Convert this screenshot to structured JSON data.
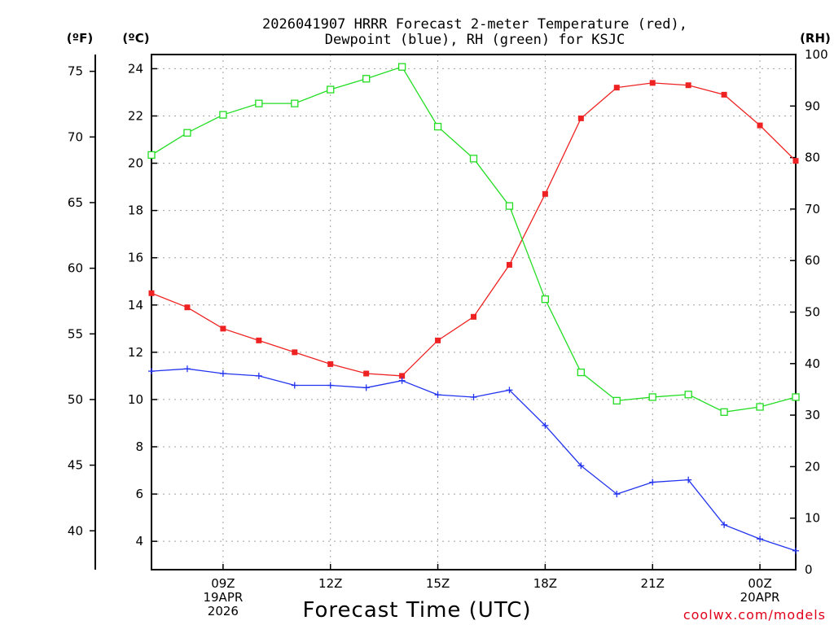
{
  "chart_data": {
    "type": "line",
    "title_line1": "2026041907 HRRR Forecast 2-meter Temperature (red),",
    "title_line2": "Dewpoint (blue), RH (green) for KSJC",
    "xlabel": "Forecast Time (UTC)",
    "credit": "coolwx.com/models",
    "units": {
      "f": "(ºF)",
      "c": "(ºC)",
      "rh": "(RH)"
    },
    "x_hours": [
      7,
      8,
      9,
      10,
      11,
      12,
      13,
      14,
      15,
      16,
      17,
      18,
      19,
      20,
      21,
      22,
      23,
      24,
      25
    ],
    "x_range": [
      7,
      25
    ],
    "x_ticks": [
      {
        "hour": 9,
        "lines": [
          "09Z",
          "19APR",
          "2026"
        ]
      },
      {
        "hour": 12,
        "lines": [
          "12Z"
        ]
      },
      {
        "hour": 15,
        "lines": [
          "15Z"
        ]
      },
      {
        "hour": 18,
        "lines": [
          "18Z"
        ]
      },
      {
        "hour": 21,
        "lines": [
          "21Z"
        ]
      },
      {
        "hour": 24,
        "lines": [
          "00Z",
          "20APR"
        ]
      }
    ],
    "yc_range": [
      2.8,
      24.6
    ],
    "yc_ticks": [
      "4",
      "6",
      "8",
      "10",
      "12",
      "14",
      "16",
      "18",
      "20",
      "22",
      "24"
    ],
    "yf_ticks": [
      "40",
      "45",
      "50",
      "55",
      "60",
      "65",
      "70",
      "75"
    ],
    "yrh_range": [
      0,
      100
    ],
    "yrh_ticks": [
      "0",
      "10",
      "20",
      "30",
      "40",
      "50",
      "60",
      "70",
      "80",
      "90",
      "100"
    ],
    "series": [
      {
        "name": "Temperature",
        "axis": "c",
        "color": "#ee2222",
        "marker": "filled-square",
        "values": [
          14.5,
          13.9,
          13.0,
          12.5,
          12.0,
          11.5,
          11.1,
          11.0,
          12.5,
          13.5,
          15.7,
          18.7,
          21.9,
          23.2,
          23.4,
          23.3,
          22.9,
          21.6,
          20.1
        ]
      },
      {
        "name": "Dewpoint",
        "axis": "c",
        "color": "#2233ee",
        "marker": "plus",
        "values": [
          11.2,
          11.3,
          11.1,
          11.0,
          10.6,
          10.6,
          10.5,
          10.8,
          10.2,
          10.1,
          10.4,
          8.9,
          7.2,
          6.0,
          6.5,
          6.6,
          4.7,
          4.1,
          3.6
        ]
      },
      {
        "name": "RH",
        "axis": "rh",
        "color": "#22dd22",
        "marker": "open-square",
        "values": [
          80.5,
          84.8,
          88.3,
          90.5,
          90.5,
          93.2,
          95.3,
          97.6,
          86.0,
          79.8,
          70.6,
          52.5,
          38.3,
          32.8,
          33.5,
          34.0,
          30.6,
          31.6,
          33.5
        ]
      }
    ]
  }
}
